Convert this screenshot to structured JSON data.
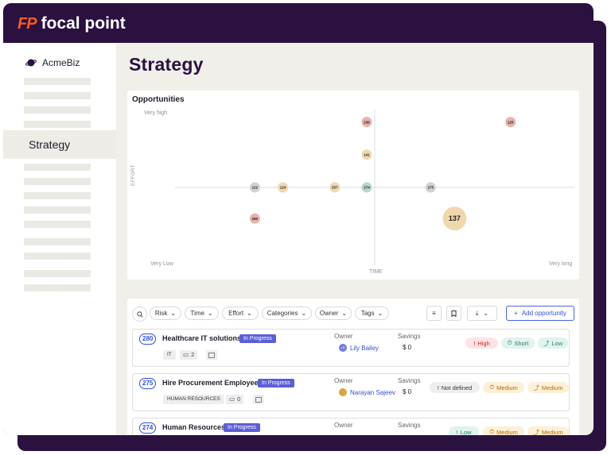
{
  "app": {
    "logo_mark": "FP",
    "logo_text": "focal point"
  },
  "sidebar": {
    "org_name": "AcmeBiz",
    "active_item": "Strategy"
  },
  "page": {
    "title": "Strategy"
  },
  "chart": {
    "title": "Opportunities",
    "y_label": "EFFORT",
    "x_label": "TIME",
    "y_top_label": "Very high",
    "x_left_label": "Very Low",
    "x_right_label": "Very long"
  },
  "chart_data": {
    "type": "scatter",
    "title": "Opportunities",
    "xlabel": "TIME",
    "ylabel": "EFFORT",
    "points": [
      {
        "label": "236",
        "color": "#e7b3ad",
        "x": 0.48,
        "y": 0.92,
        "size": 1
      },
      {
        "label": "125",
        "color": "#e7b3ad",
        "x": 0.84,
        "y": 0.92,
        "size": 1
      },
      {
        "label": "141",
        "color": "#f0d8ad",
        "x": 0.48,
        "y": 0.71,
        "size": 1
      },
      {
        "label": "122",
        "color": "#d2d2d6",
        "x": 0.2,
        "y": 0.5,
        "size": 1
      },
      {
        "label": "124",
        "color": "#f0d8ad",
        "x": 0.27,
        "y": 0.5,
        "size": 1
      },
      {
        "label": "257",
        "color": "#f0d8ad",
        "x": 0.4,
        "y": 0.5,
        "size": 1
      },
      {
        "label": "274",
        "color": "#b7d6d1",
        "x": 0.48,
        "y": 0.5,
        "size": 1
      },
      {
        "label": "275",
        "color": "#d2d2d6",
        "x": 0.64,
        "y": 0.5,
        "size": 1
      },
      {
        "label": "280",
        "color": "#e7b3ad",
        "x": 0.2,
        "y": 0.3,
        "size": 1
      },
      {
        "label": "137",
        "color": "#f0d8ad",
        "x": 0.7,
        "y": 0.3,
        "size": 2.3
      }
    ]
  },
  "filters": {
    "items": [
      "Risk",
      "Time",
      "Effort",
      "Categories",
      "Owner",
      "Tags"
    ],
    "add_label": "Add opportunity"
  },
  "rows": [
    {
      "id": "280",
      "title": "Healthcare IT solutions",
      "status": "In Progress",
      "tag": "IT",
      "count": "2",
      "owner_label": "Owner",
      "owner": "Lily Bailey",
      "owner_initials": "LB",
      "savings_label": "Savings",
      "savings": "$ 0",
      "chips": [
        {
          "icon": "!",
          "text": "High",
          "bg": "#fde4e4",
          "fg": "#c62828"
        },
        {
          "icon": "⏱",
          "text": "Short",
          "bg": "#dff3ef",
          "fg": "#2e7d6b"
        },
        {
          "icon": "⤴",
          "text": "Low",
          "bg": "#dff3ef",
          "fg": "#2e7d6b"
        }
      ]
    },
    {
      "id": "275",
      "title": "Hire Procurement Employees",
      "status": "In Progress",
      "tag": "HUMAN RESOURCES",
      "count": "0",
      "owner_label": "Owner",
      "owner": "Narayan Sajeev",
      "owner_initials": "",
      "savings_label": "Savings",
      "savings": "$ 0",
      "chips": [
        {
          "icon": "!",
          "text": "Not defined",
          "bg": "#eeeef1",
          "fg": "#333333"
        },
        {
          "icon": "⏱",
          "text": "Medium",
          "bg": "#fdf0d8",
          "fg": "#b26a00"
        },
        {
          "icon": "⤴",
          "text": "Medium",
          "bg": "#fdf0d8",
          "fg": "#b26a00"
        }
      ]
    },
    {
      "id": "274",
      "title": "Human Resources",
      "status": "In Progress",
      "tag": "",
      "count": "",
      "owner_label": "Owner",
      "owner": "",
      "owner_initials": "",
      "savings_label": "Savings",
      "savings": "",
      "chips": [
        {
          "icon": "!",
          "text": "Low",
          "bg": "#dff3ef",
          "fg": "#2e7d6b"
        },
        {
          "icon": "⏱",
          "text": "Medium",
          "bg": "#fdf0d8",
          "fg": "#b26a00"
        },
        {
          "icon": "⤴",
          "text": "Medium",
          "bg": "#fdf0d8",
          "fg": "#b26a00"
        }
      ]
    }
  ]
}
